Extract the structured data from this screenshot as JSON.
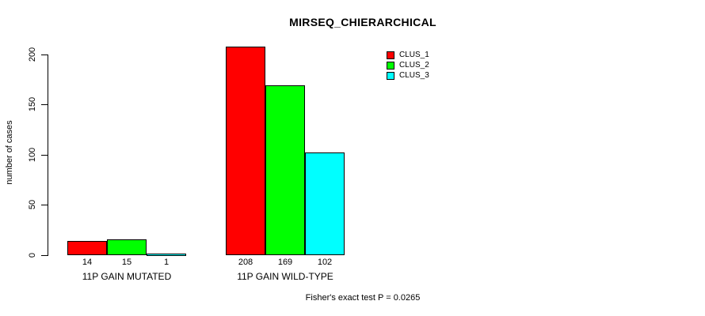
{
  "title": "MIRSEQ_CHIERARCHICAL",
  "footer": "Fisher's exact test P = 0.0265",
  "chart_data": {
    "type": "bar",
    "title": "MIRSEQ_CHIERARCHICAL",
    "xlabel": "",
    "ylabel": "number of cases",
    "categories": [
      "11P GAIN MUTATED",
      "11P GAIN WILD-TYPE"
    ],
    "series": [
      {
        "name": "CLUS_1",
        "color": "#FF0000",
        "values": [
          14,
          208
        ]
      },
      {
        "name": "CLUS_2",
        "color": "#00FF00",
        "values": [
          15,
          169
        ]
      },
      {
        "name": "CLUS_3",
        "color": "#00FFFF",
        "values": [
          1,
          102
        ]
      }
    ],
    "bar_value_labels": [
      [
        "14",
        "15",
        "1"
      ],
      [
        "208",
        "169",
        "102"
      ]
    ],
    "yticks": [
      0,
      50,
      100,
      150,
      200
    ],
    "ylim": [
      0,
      200
    ],
    "grid": false,
    "legend_position": "top-right",
    "annotation": "Fisher's exact test P = 0.0265"
  }
}
